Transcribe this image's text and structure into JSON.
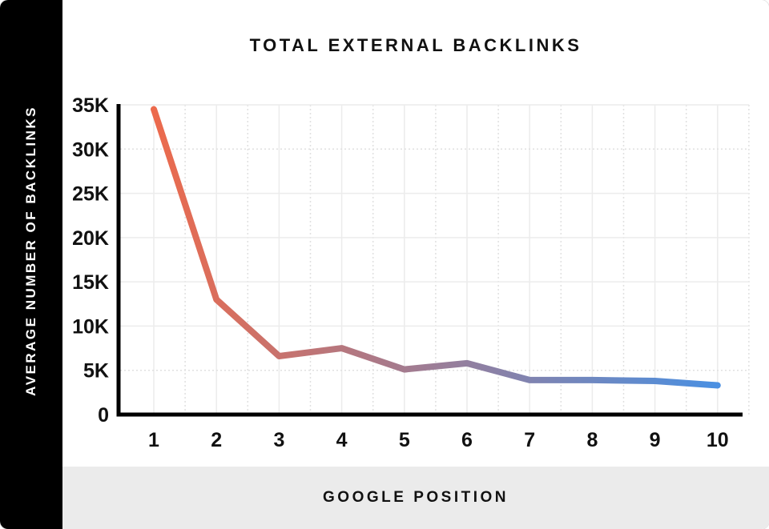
{
  "card": {
    "title": "TOTAL EXTERNAL BACKLINKS",
    "y_axis_panel_label": "AVERAGE NUMBER OF BACKLINKS",
    "x_axis_panel_label": "GOOGLE POSITION"
  },
  "colors": {
    "sidebar_bg": "#000000",
    "sidebar_text": "#ffffff",
    "footer_bg": "#ebebeb",
    "axis": "#000000",
    "grid_solid": "#ececec",
    "grid_dotted": "#e0e0e0",
    "text": "#111111",
    "line_start": "#ec6a4c",
    "line_end": "#4a90e2"
  },
  "chart_data": {
    "type": "line",
    "title": "TOTAL EXTERNAL BACKLINKS",
    "xlabel": "GOOGLE POSITION",
    "ylabel": "AVERAGE NUMBER OF BACKLINKS",
    "x": [
      1,
      2,
      3,
      4,
      5,
      6,
      7,
      8,
      9,
      10
    ],
    "values": [
      34500,
      13000,
      6600,
      7500,
      5100,
      5800,
      3900,
      3900,
      3800,
      3300
    ],
    "x_tick_labels": [
      "1",
      "2",
      "3",
      "4",
      "5",
      "6",
      "7",
      "8",
      "9",
      "10"
    ],
    "y_ticks": [
      {
        "value": 0,
        "label": "0"
      },
      {
        "value": 5000,
        "label": "5K"
      },
      {
        "value": 10000,
        "label": "10K"
      },
      {
        "value": 15000,
        "label": "15K"
      },
      {
        "value": 20000,
        "label": "20K"
      },
      {
        "value": 25000,
        "label": "25K"
      },
      {
        "value": 30000,
        "label": "30K"
      },
      {
        "value": 35000,
        "label": "35K"
      }
    ],
    "ylim": [
      0,
      35000
    ],
    "xlim": [
      0.5,
      10.5
    ],
    "grid": "both",
    "legend": false,
    "line_gradient": [
      "#ec6a4c",
      "#4a90e2"
    ],
    "line_width": 8
  }
}
